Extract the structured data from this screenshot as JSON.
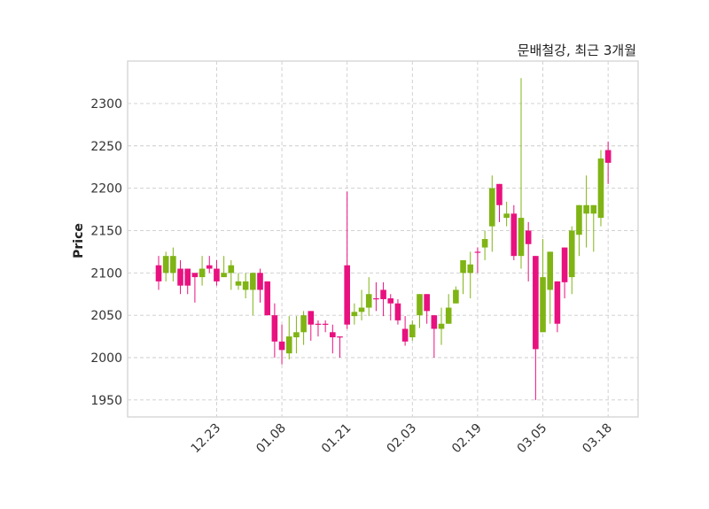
{
  "chart_data": {
    "type": "candlestick",
    "title": "문배철강, 최근 3개월",
    "xlabel": "",
    "ylabel": "Price",
    "ylim": [
      1930,
      2350
    ],
    "yticks": [
      1950,
      2000,
      2050,
      2100,
      2150,
      2200,
      2250,
      2300
    ],
    "xticks": [
      {
        "index": 8,
        "label": "12.23"
      },
      {
        "index": 17,
        "label": "01.08"
      },
      {
        "index": 26,
        "label": "01.21"
      },
      {
        "index": 35,
        "label": "02.03"
      },
      {
        "index": 44,
        "label": "02.19"
      },
      {
        "index": 53,
        "label": "03.05"
      },
      {
        "index": 62,
        "label": "03.18"
      }
    ],
    "grid": true,
    "colors": {
      "up": "#7fb414",
      "down": "#e8117f"
    },
    "ohlc": [
      [
        2109,
        2120,
        2080,
        2090
      ],
      [
        2100,
        2125,
        2090,
        2120
      ],
      [
        2100,
        2130,
        2090,
        2120
      ],
      [
        2105,
        2115,
        2075,
        2085
      ],
      [
        2105,
        2105,
        2075,
        2085
      ],
      [
        2100,
        2100,
        2065,
        2095
      ],
      [
        2095,
        2120,
        2085,
        2105
      ],
      [
        2109,
        2120,
        2100,
        2105
      ],
      [
        2105,
        2115,
        2085,
        2090
      ],
      [
        2095,
        2120,
        2095,
        2100
      ],
      [
        2100,
        2115,
        2080,
        2109
      ],
      [
        2085,
        2100,
        2080,
        2090
      ],
      [
        2080,
        2100,
        2070,
        2090
      ],
      [
        2080,
        2100,
        2050,
        2100
      ],
      [
        2100,
        2105,
        2065,
        2080
      ],
      [
        2090,
        2090,
        2050,
        2050
      ],
      [
        2050,
        2064,
        2000,
        2019
      ],
      [
        2019,
        2039,
        1992,
        2009
      ],
      [
        2005,
        2049,
        1998,
        2025
      ],
      [
        2024,
        2049,
        2005,
        2030
      ],
      [
        2030,
        2055,
        2015,
        2050
      ],
      [
        2055,
        2055,
        2020,
        2039
      ],
      [
        2040,
        2044,
        2025,
        2039
      ],
      [
        2040,
        2044,
        2030,
        2039
      ],
      [
        2030,
        2039,
        2005,
        2024
      ],
      [
        2025,
        2025,
        2000,
        2024
      ],
      [
        2109,
        2196,
        2034,
        2039
      ],
      [
        2049,
        2064,
        2039,
        2054
      ],
      [
        2054,
        2080,
        2044,
        2059
      ],
      [
        2059,
        2095,
        2049,
        2075
      ],
      [
        2070,
        2089,
        2055,
        2069
      ],
      [
        2080,
        2089,
        2049,
        2069
      ],
      [
        2070,
        2075,
        2044,
        2064
      ],
      [
        2064,
        2069,
        2039,
        2044
      ],
      [
        2034,
        2049,
        2014,
        2019
      ],
      [
        2024,
        2044,
        2020,
        2039
      ],
      [
        2050,
        2075,
        2035,
        2075
      ],
      [
        2075,
        2075,
        2040,
        2055
      ],
      [
        2050,
        2050,
        2000,
        2034
      ],
      [
        2034,
        2059,
        2015,
        2040
      ],
      [
        2040,
        2075,
        2040,
        2059
      ],
      [
        2064,
        2084,
        2064,
        2080
      ],
      [
        2100,
        2115,
        2075,
        2115
      ],
      [
        2100,
        2125,
        2070,
        2110
      ],
      [
        2125,
        2130,
        2100,
        2124
      ],
      [
        2130,
        2150,
        2115,
        2140
      ],
      [
        2155,
        2215,
        2125,
        2200
      ],
      [
        2205,
        2205,
        2160,
        2180
      ],
      [
        2165,
        2184,
        2155,
        2170
      ],
      [
        2170,
        2180,
        2115,
        2120
      ],
      [
        2120,
        2330,
        2105,
        2165
      ],
      [
        2150,
        2160,
        2090,
        2134
      ],
      [
        2120,
        2120,
        1950,
        2010
      ],
      [
        2030,
        2140,
        2030,
        2095
      ],
      [
        2080,
        2125,
        2040,
        2125
      ],
      [
        2090,
        2090,
        2030,
        2040
      ],
      [
        2130,
        2130,
        2070,
        2089
      ],
      [
        2095,
        2155,
        2075,
        2150
      ],
      [
        2145,
        2180,
        2120,
        2180
      ],
      [
        2170,
        2215,
        2130,
        2180
      ],
      [
        2170,
        2180,
        2125,
        2180
      ],
      [
        2165,
        2245,
        2155,
        2235
      ],
      [
        2245,
        2255,
        2205,
        2230
      ]
    ]
  }
}
